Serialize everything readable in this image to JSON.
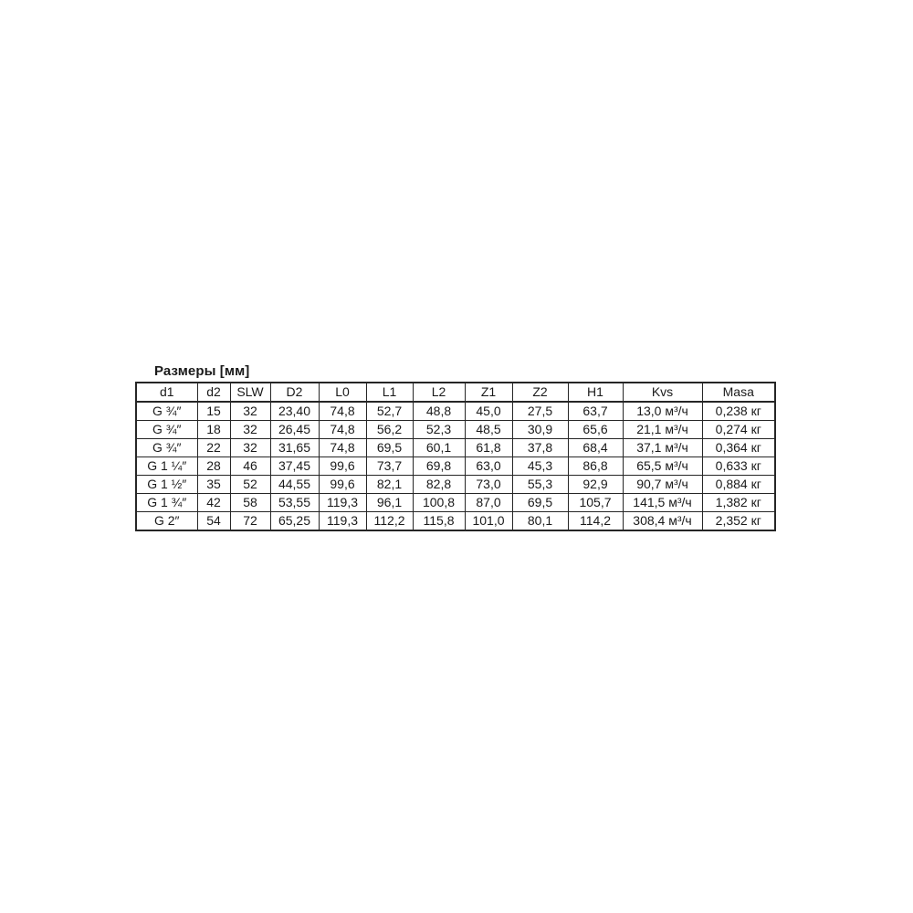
{
  "page": {
    "background_color": "#ffffff",
    "text_color": "#1a1a1a",
    "table_border_color": "#262626"
  },
  "table": {
    "title": "Размеры [мм]",
    "columns": [
      "d1",
      "d2",
      "SLW",
      "D2",
      "L0",
      "L1",
      "L2",
      "Z1",
      "Z2",
      "H1",
      "Kvs",
      "Masa"
    ],
    "rows": [
      [
        "G ¾″",
        "15",
        "32",
        "23,40",
        "74,8",
        "52,7",
        "48,8",
        "45,0",
        "27,5",
        "63,7",
        "13,0 м³/ч",
        "0,238 кг"
      ],
      [
        "G ¾″",
        "18",
        "32",
        "26,45",
        "74,8",
        "56,2",
        "52,3",
        "48,5",
        "30,9",
        "65,6",
        "21,1 м³/ч",
        "0,274 кг"
      ],
      [
        "G ¾″",
        "22",
        "32",
        "31,65",
        "74,8",
        "69,5",
        "60,1",
        "61,8",
        "37,8",
        "68,4",
        "37,1 м³/ч",
        "0,364 кг"
      ],
      [
        "G 1 ¼″",
        "28",
        "46",
        "37,45",
        "99,6",
        "73,7",
        "69,8",
        "63,0",
        "45,3",
        "86,8",
        "65,5 м³/ч",
        "0,633 кг"
      ],
      [
        "G 1 ½″",
        "35",
        "52",
        "44,55",
        "99,6",
        "82,1",
        "82,8",
        "73,0",
        "55,3",
        "92,9",
        "90,7 м³/ч",
        "0,884 кг"
      ],
      [
        "G 1 ¾″",
        "42",
        "58",
        "53,55",
        "119,3",
        "96,1",
        "100,8",
        "87,0",
        "69,5",
        "105,7",
        "141,5 м³/ч",
        "1,382 кг"
      ],
      [
        "G 2″",
        "54",
        "72",
        "65,25",
        "119,3",
        "112,2",
        "115,8",
        "101,0",
        "80,1",
        "114,2",
        "308,4 м³/ч",
        "2,352 кг"
      ]
    ]
  }
}
